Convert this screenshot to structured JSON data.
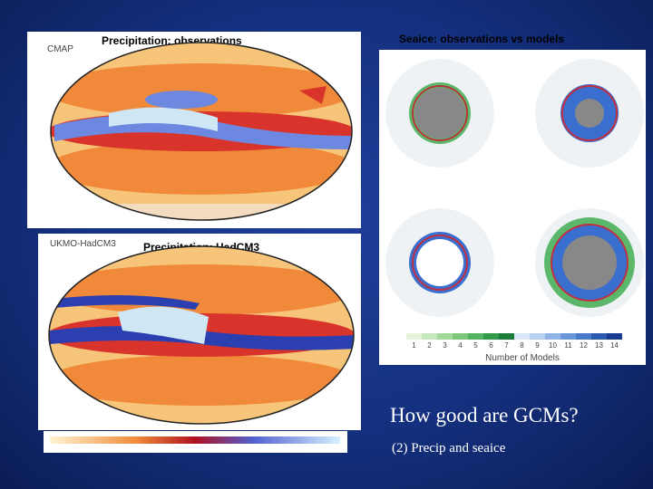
{
  "slide": {
    "title": "How good are GCMs?",
    "subtitle": "(2) Precip and seaice",
    "panels": [
      {
        "label": "Precipitation: observations",
        "source": "CMAP"
      },
      {
        "label": "Precipitation: HadCM3",
        "source": "UKMO-HadCM3"
      },
      {
        "label": "Seaice: observations vs models",
        "colorbar_ticks": [
          1,
          2,
          3,
          4,
          5,
          6,
          7,
          8,
          9,
          10,
          11,
          12,
          13,
          14
        ],
        "colorbar_label": "Number of Models"
      }
    ]
  }
}
